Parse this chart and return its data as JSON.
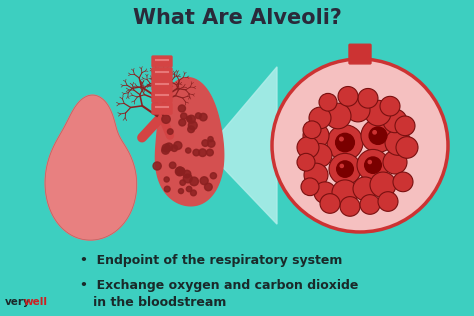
{
  "title": "What Are Alveoli?",
  "background_color": "#3dcfc0",
  "title_color": "#2a2a3a",
  "title_fontsize": 15,
  "bullet_points": [
    "Endpoint of the respiratory system",
    "Exchange oxygen and carbon dioxide\n   in the bloodstream"
  ],
  "bullet_color": "#1a2a2a",
  "bullet_fontsize": 9,
  "lung_left_color": "#e88080",
  "lung_right_color": "#d45050",
  "bronchi_color": "#8b2020",
  "trachea_color": "#d44444",
  "trachea_stripe": "#e87878",
  "zoom_cone_color": "#b0eeea",
  "circle_bg_color": "#f5c0c0",
  "circle_border_color": "#cc3333",
  "alveoli_fill": "#cc3333",
  "alveoli_border": "#7a1010",
  "alveoli_dark": "#7a0000",
  "logo_very_color": "#1a2a2a",
  "logo_well_color": "#cc2222"
}
